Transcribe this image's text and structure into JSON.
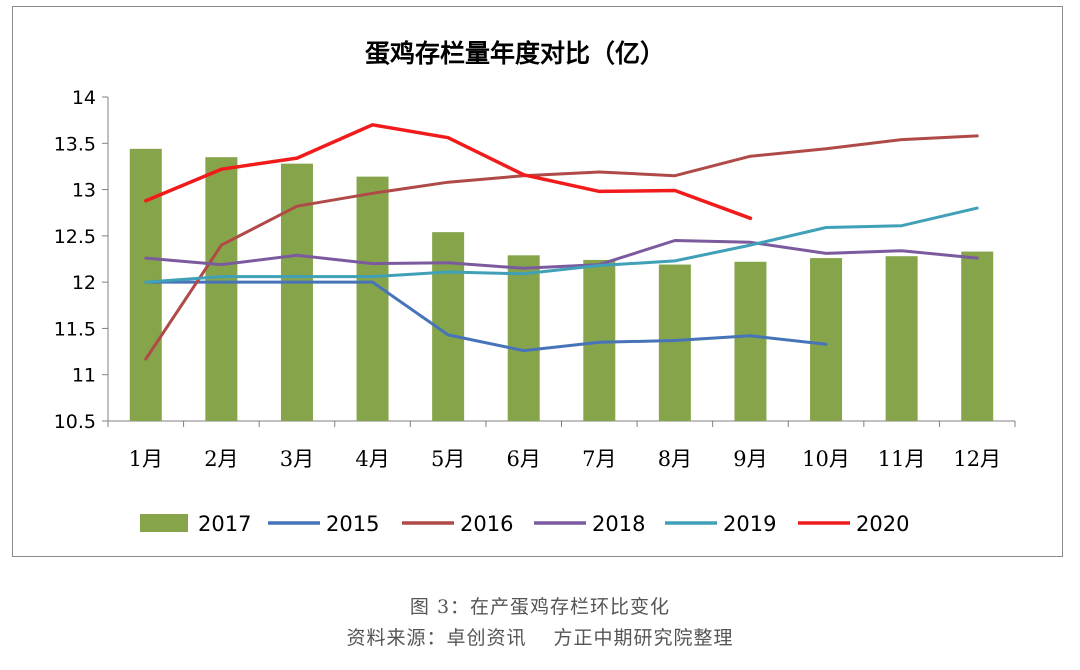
{
  "chart_data": {
    "type": "bar+line",
    "title": "蛋鸡存栏量年度对比（亿）",
    "categories": [
      "1月",
      "2月",
      "3月",
      "4月",
      "5月",
      "6月",
      "7月",
      "8月",
      "9月",
      "10月",
      "11月",
      "12月"
    ],
    "ylim": [
      10.5,
      14
    ],
    "yticks": [
      "10.5",
      "11",
      "11.5",
      "12",
      "12.5",
      "13",
      "13.5",
      "14"
    ],
    "bar_series": {
      "name": "2017",
      "color": "#86a54b",
      "values": [
        13.44,
        13.35,
        13.28,
        13.14,
        12.54,
        12.29,
        12.24,
        12.19,
        12.22,
        12.26,
        12.28,
        12.33
      ]
    },
    "line_series": [
      {
        "name": "2015",
        "color": "#4774b8",
        "values": [
          12.0,
          12.0,
          12.0,
          12.0,
          11.43,
          11.26,
          11.35,
          11.37,
          11.42,
          11.33,
          null,
          null
        ]
      },
      {
        "name": "2016",
        "color": "#b04a48",
        "values": [
          11.17,
          12.4,
          12.82,
          12.96,
          13.08,
          13.15,
          13.19,
          13.15,
          13.36,
          13.44,
          13.54,
          13.58
        ]
      },
      {
        "name": "2018",
        "color": "#7b5a9e",
        "values": [
          12.26,
          12.19,
          12.29,
          12.2,
          12.21,
          12.15,
          12.19,
          12.45,
          12.43,
          12.31,
          12.34,
          12.26
        ]
      },
      {
        "name": "2019",
        "color": "#3fa0b8",
        "values": [
          12.0,
          12.06,
          12.06,
          12.06,
          12.11,
          12.09,
          12.18,
          12.23,
          12.4,
          12.59,
          12.61,
          12.8
        ]
      },
      {
        "name": "2020",
        "color": "#f21b1b",
        "values": [
          12.88,
          13.22,
          13.34,
          13.7,
          13.56,
          13.16,
          12.98,
          12.99,
          12.69,
          null,
          null,
          null
        ]
      }
    ],
    "legend": [
      "2017",
      "2015",
      "2016",
      "2018",
      "2019",
      "2020"
    ],
    "legend_position": "bottom"
  },
  "caption": {
    "figure": "图 3：在产蛋鸡存栏环比变化",
    "source": "资料来源：卓创资讯　 方正中期研究院整理"
  }
}
